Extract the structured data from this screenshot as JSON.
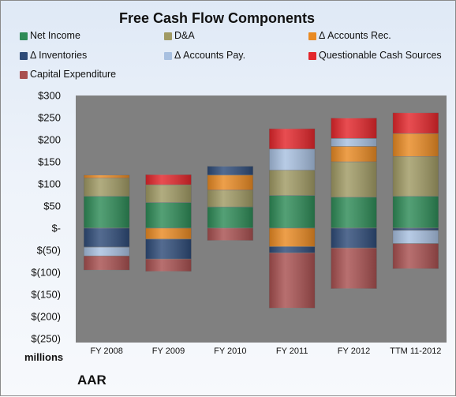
{
  "chart_data": {
    "type": "bar",
    "stacked": true,
    "title": "Free Cash Flow Components",
    "ylabel": "millions",
    "ylim": [
      -250,
      300
    ],
    "yticks": [
      300,
      250,
      200,
      150,
      100,
      50,
      0,
      -50,
      -100,
      -150,
      -200,
      -250
    ],
    "ytick_labels": [
      "$300",
      "$250",
      "$200",
      "$150",
      "$100",
      "$50",
      "$-",
      "$(50)",
      "$(100)",
      "$(150)",
      "$(200)",
      "$(250)"
    ],
    "categories": [
      "FY 2008",
      "FY 2009",
      "FY 2010",
      "FY 2011",
      "FY 2012",
      "TTM 11-2012"
    ],
    "legend_position": "top",
    "grid": false,
    "series": [
      {
        "name": "Net Income",
        "color": "#2e8b57",
        "values": [
          72,
          58,
          48,
          74,
          70,
          72
        ]
      },
      {
        "name": "D&A",
        "color": "#a09a64",
        "values": [
          41,
          40,
          38,
          57,
          80,
          90
        ]
      },
      {
        "name": "Δ Accounts Rec.",
        "color": "#e98a23",
        "values": [
          7,
          -25,
          34,
          -42,
          35,
          52
        ]
      },
      {
        "name": "Δ Inventories",
        "color": "#2e4b78",
        "values": [
          -43,
          -45,
          20,
          -14,
          -45,
          -5
        ]
      },
      {
        "name": "Δ Accounts Pay.",
        "color": "#a8c0e0",
        "values": [
          -20,
          0,
          0,
          48,
          18,
          -30
        ]
      },
      {
        "name": "Questionable Cash Sources",
        "color": "#e3262b",
        "values": [
          0,
          23,
          0,
          46,
          46,
          47
        ]
      },
      {
        "name": "Capital Expenditure",
        "color": "#a85050",
        "values": [
          -32,
          -28,
          -28,
          -125,
          -92,
          -57
        ]
      }
    ]
  },
  "company": "AAR"
}
